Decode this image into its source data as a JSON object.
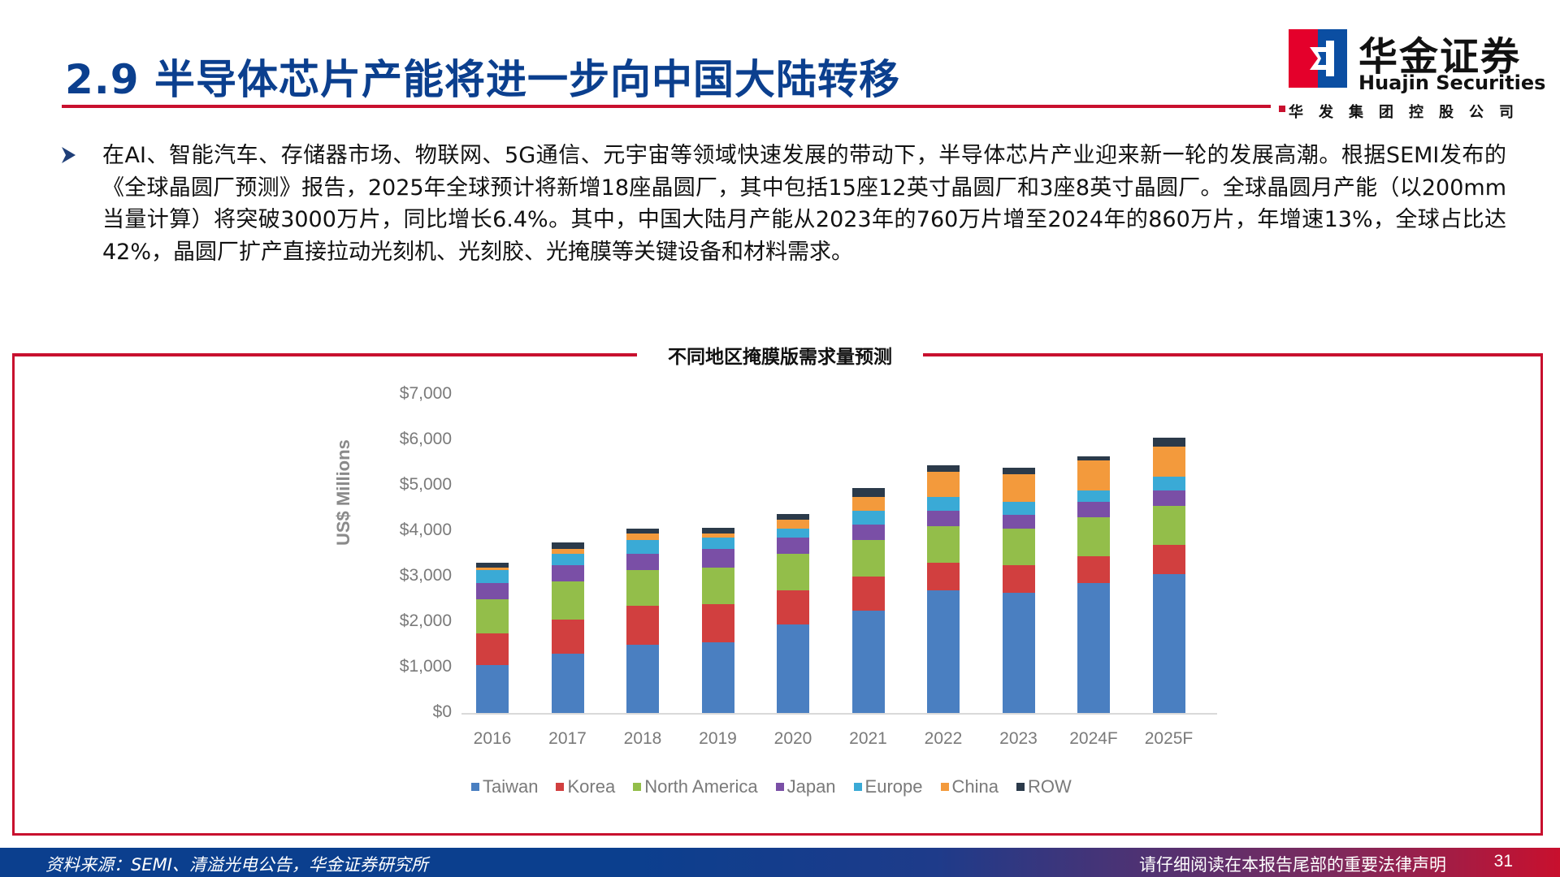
{
  "header": {
    "title": "2.9 半导体芯片产能将进一步向中国大陆转移",
    "logo_cn": "华金证券",
    "logo_en": "Huajin Securities",
    "logo_sub": "华发集团控股公司"
  },
  "body": {
    "bullet_text": "在AI、智能汽车、存储器市场、物联网、5G通信、元宇宙等领域快速发展的带动下，半导体芯片产业迎来新一轮的发展高潮。根据SEMI发布的《全球晶圆厂预测》报告，2025年全球预计将新增18座晶圆厂，其中包括15座12英寸晶圆厂和3座8英寸晶圆厂。全球晶圆月产能（以200mm当量计算）将突破3000万片，同比增长6.4%。其中，中国大陆月产能从2023年的760万片增至2024年的860万片，年增速13%，全球占比达42%，晶圆厂扩产直接拉动光刻机、光刻胶、光掩膜等关键设备和材料需求。"
  },
  "chart_box": {
    "title": "不同地区掩膜版需求量预测"
  },
  "chart_data": {
    "type": "bar",
    "stacked": true,
    "title": "不同地区掩膜版需求量预测",
    "xlabel": "",
    "ylabel": "US$ Millions",
    "ylim": [
      0,
      7000
    ],
    "y_ticks": [
      "$0",
      "$1,000",
      "$2,000",
      "$3,000",
      "$4,000",
      "$5,000",
      "$6,000",
      "$7,000"
    ],
    "grid": false,
    "legend_position": "bottom",
    "categories": [
      "2016",
      "2017",
      "2018",
      "2019",
      "2020",
      "2021",
      "2022",
      "2023",
      "2024F",
      "2025F"
    ],
    "series": [
      {
        "name": "Taiwan",
        "color": "#4a7fc1",
        "values": [
          1050,
          1300,
          1500,
          1550,
          1950,
          2250,
          2700,
          2650,
          2850,
          3050
        ]
      },
      {
        "name": "Korea",
        "color": "#d13f3f",
        "values": [
          700,
          750,
          850,
          850,
          750,
          750,
          600,
          600,
          600,
          650
        ]
      },
      {
        "name": "North America",
        "color": "#93be4a",
        "values": [
          750,
          850,
          800,
          800,
          800,
          800,
          800,
          800,
          850,
          850
        ]
      },
      {
        "name": "Japan",
        "color": "#7a4fa6",
        "values": [
          350,
          350,
          350,
          400,
          350,
          350,
          350,
          300,
          350,
          350
        ]
      },
      {
        "name": "Europe",
        "color": "#3aaad6",
        "values": [
          300,
          250,
          300,
          250,
          200,
          300,
          300,
          300,
          250,
          300
        ]
      },
      {
        "name": "China",
        "color": "#f39a3c",
        "values": [
          50,
          100,
          150,
          100,
          200,
          300,
          550,
          600,
          650,
          650
        ]
      },
      {
        "name": "ROW",
        "color": "#2b3a4a",
        "values": [
          100,
          150,
          100,
          130,
          130,
          200,
          150,
          150,
          100,
          200
        ]
      }
    ]
  },
  "footer": {
    "source": "资料来源：SEMI、清溢光电公告，华金证券研究所",
    "disclaimer": "请仔细阅读在本报告尾部的重要法律声明",
    "page_number": "31"
  }
}
